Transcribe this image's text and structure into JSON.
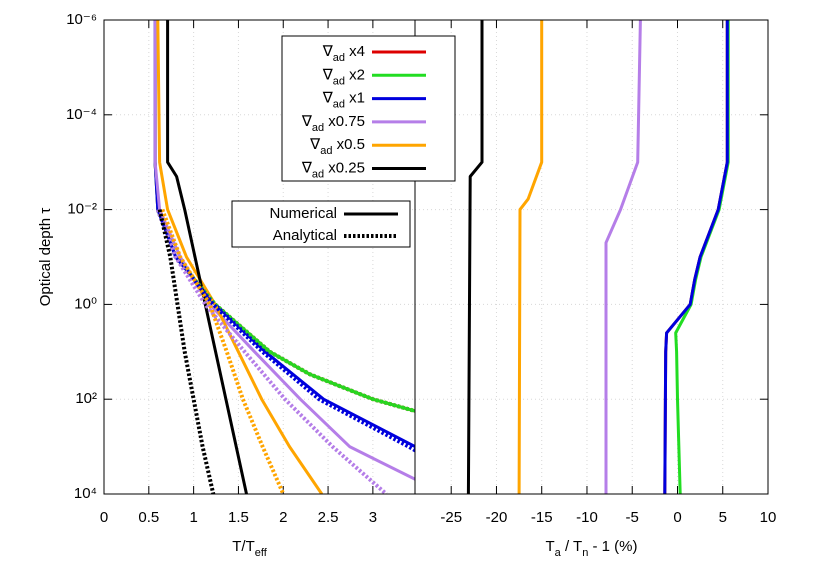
{
  "chart_data": [
    {
      "type": "line",
      "y_label": [
        {
          "text": "Optical depth τ"
        }
      ],
      "x_label": [
        {
          "text": "T/T"
        },
        {
          "text": "eff",
          "sub": true
        }
      ],
      "xlim": [
        0,
        3.47
      ],
      "xticks": [
        0,
        0.5,
        1,
        1.5,
        2,
        2.5,
        3
      ],
      "ylim": [
        1e-06,
        10000.0
      ],
      "log_y": true,
      "y_reversed": true,
      "grid": true,
      "yticks": [
        {
          "value": 1e-06,
          "label": "10⁻⁶"
        },
        {
          "value": 0.0001,
          "label": "10⁻⁴"
        },
        {
          "value": 0.01,
          "label": "10⁻²"
        },
        {
          "value": 1,
          "label": "10⁰"
        },
        {
          "value": 100,
          "label": "10²"
        },
        {
          "value": 10000,
          "label": "10⁴"
        }
      ],
      "series": [
        {
          "color": "#dd0000",
          "dashed": false,
          "y": [
            1e-06,
            0.001,
            0.01,
            0.1,
            1,
            10,
            30,
            100,
            300
          ],
          "x": [
            0.57,
            0.57,
            0.6,
            0.8,
            1.24,
            1.85,
            2.3,
            3.0,
            3.9
          ]
        },
        {
          "color": "#22dd22",
          "dashed": false,
          "y": [
            1e-06,
            0.001,
            0.01,
            0.1,
            1,
            10,
            30,
            100,
            300
          ],
          "x": [
            0.57,
            0.57,
            0.6,
            0.8,
            1.24,
            1.85,
            2.3,
            3.0,
            3.9
          ]
        },
        {
          "color": "#0000dd",
          "dashed": false,
          "y": [
            1e-06,
            0.001,
            0.01,
            0.1,
            1,
            10,
            100,
            1000,
            10000
          ],
          "x": [
            0.57,
            0.57,
            0.6,
            0.8,
            1.24,
            1.8,
            2.45,
            3.47,
            4.4
          ]
        },
        {
          "color": "#b57ee8",
          "dashed": false,
          "y": [
            1e-06,
            0.001,
            0.01,
            0.1,
            1,
            10,
            100,
            1000,
            10000
          ],
          "x": [
            0.57,
            0.57,
            0.62,
            0.85,
            1.18,
            1.68,
            2.19,
            2.74,
            3.8
          ]
        },
        {
          "color": "#ffa500",
          "dashed": false,
          "y": [
            1e-06,
            0.001,
            0.01,
            0.1,
            1,
            10,
            100,
            1000,
            10000
          ],
          "x": [
            0.6,
            0.62,
            0.71,
            0.92,
            1.24,
            1.5,
            1.76,
            2.07,
            2.43
          ]
        },
        {
          "color": "#000000",
          "dashed": false,
          "y": [
            1e-06,
            0.001,
            0.002,
            0.01,
            1,
            100,
            10000
          ],
          "x": [
            0.71,
            0.71,
            0.81,
            0.9,
            1.13,
            1.36,
            1.59
          ]
        },
        {
          "color": "#dd0000",
          "dashed": true,
          "y": [
            0.01,
            0.1,
            1,
            10,
            30,
            100,
            300
          ],
          "x": [
            0.6,
            0.8,
            1.24,
            1.85,
            2.3,
            3.0,
            3.9
          ]
        },
        {
          "color": "#22dd22",
          "dashed": true,
          "y": [
            0.01,
            0.1,
            1,
            10,
            30,
            100,
            300
          ],
          "x": [
            0.6,
            0.8,
            1.24,
            1.85,
            2.3,
            3.0,
            3.9
          ]
        },
        {
          "color": "#0000dd",
          "dashed": true,
          "y": [
            0.01,
            0.1,
            1,
            10,
            100,
            1000,
            10000
          ],
          "x": [
            0.6,
            0.8,
            1.22,
            1.77,
            2.4,
            3.4,
            4.3
          ]
        },
        {
          "color": "#b57ee8",
          "dashed": true,
          "y": [
            0.01,
            0.1,
            1,
            10,
            100,
            1000,
            10000
          ],
          "x": [
            0.6,
            0.8,
            1.13,
            1.57,
            2.02,
            2.55,
            3.15
          ]
        },
        {
          "color": "#ffa500",
          "dashed": true,
          "y": [
            0.01,
            0.1,
            1,
            10,
            100,
            1000,
            10000
          ],
          "x": [
            0.65,
            0.85,
            1.18,
            1.37,
            1.55,
            1.77,
            2.0
          ]
        },
        {
          "color": "#000000",
          "dashed": true,
          "y": [
            0.01,
            0.1,
            1,
            10,
            100,
            1000,
            10000
          ],
          "x": [
            0.62,
            0.74,
            0.82,
            0.9,
            1.0,
            1.1,
            1.22
          ]
        }
      ]
    },
    {
      "type": "line",
      "x_label": [
        {
          "text": "T"
        },
        {
          "text": "a",
          "sub": true
        },
        {
          "text": " / T"
        },
        {
          "text": "n",
          "sub": true
        },
        {
          "text": " - 1 (%)"
        }
      ],
      "xlim": [
        -29,
        10
      ],
      "xticks": [
        -25,
        -20,
        -15,
        -10,
        -5,
        0,
        5,
        10
      ],
      "grid": true,
      "series": [
        {
          "color": "#dd0000",
          "dashed": false,
          "y": [
            1e-06,
            0.001,
            0.01,
            0.1,
            0.3,
            1,
            4,
            10,
            10000
          ],
          "x": [
            5.5,
            5.5,
            4.5,
            2.5,
            1.9,
            1.4,
            -1.2,
            -1.3,
            -1.4
          ]
        },
        {
          "color": "#22dd22",
          "dashed": false,
          "y": [
            1e-06,
            0.001,
            0.01,
            0.1,
            0.3,
            1,
            4,
            10,
            100,
            10000
          ],
          "x": [
            5.6,
            5.6,
            4.6,
            2.6,
            2.0,
            1.5,
            -0.2,
            -0.1,
            0.0,
            0.3
          ]
        },
        {
          "color": "#0000dd",
          "dashed": false,
          "y": [
            1e-06,
            0.001,
            0.01,
            0.1,
            0.3,
            1,
            4,
            10,
            10000
          ],
          "x": [
            5.5,
            5.5,
            4.5,
            2.5,
            1.9,
            1.4,
            -1.2,
            -1.3,
            -1.4
          ]
        },
        {
          "color": "#b57ee8",
          "dashed": false,
          "y": [
            1e-06,
            0.001,
            0.01,
            0.05,
            10000
          ],
          "x": [
            -4.1,
            -4.4,
            -6.3,
            -7.9,
            -7.9
          ]
        },
        {
          "color": "#ffa500",
          "dashed": false,
          "y": [
            1e-06,
            0.001,
            0.006,
            0.01,
            10000
          ],
          "x": [
            -15.0,
            -15.0,
            -16.5,
            -17.4,
            -17.5
          ]
        },
        {
          "color": "#000000",
          "dashed": false,
          "y": [
            1e-06,
            0.001,
            0.002,
            10000
          ],
          "x": [
            -21.6,
            -21.6,
            -22.9,
            -23.1
          ]
        }
      ]
    }
  ],
  "legend": {
    "entries": [
      {
        "symbol": "∇",
        "sub": "ad",
        "text": " x4",
        "color": "#dd0000"
      },
      {
        "symbol": "∇",
        "sub": "ad",
        "text": " x2",
        "color": "#22dd22"
      },
      {
        "symbol": "∇",
        "sub": "ad",
        "text": " x1",
        "color": "#0000dd"
      },
      {
        "symbol": "∇",
        "sub": "ad",
        "text": " x0.75",
        "color": "#b57ee8"
      },
      {
        "symbol": "∇",
        "sub": "ad",
        "text": " x0.5",
        "color": "#ffa500"
      },
      {
        "symbol": "∇",
        "sub": "ad",
        "text": " x0.25",
        "color": "#000000"
      }
    ],
    "styles": [
      {
        "text": "Numerical",
        "dashed": false
      },
      {
        "text": "Analytical",
        "dashed": true
      }
    ]
  }
}
